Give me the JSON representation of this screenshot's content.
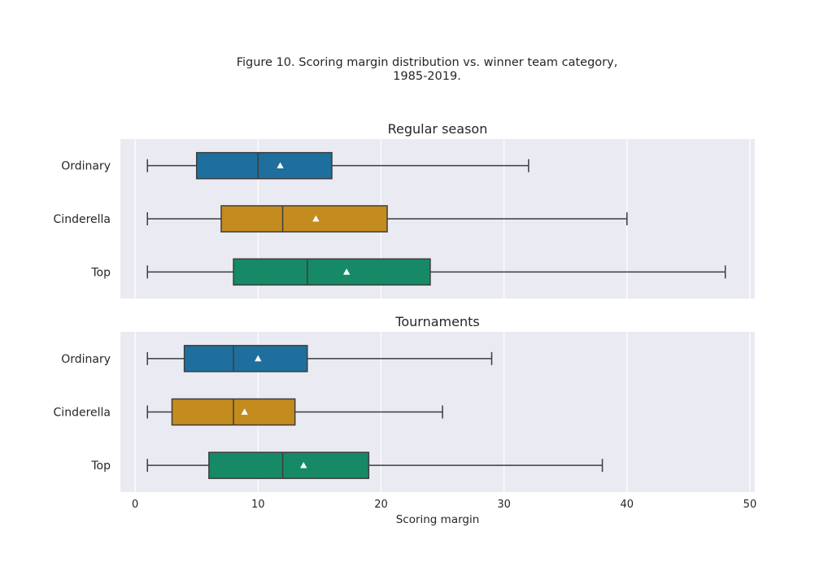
{
  "figure_title": "Figure 10. Scoring margin distribution vs. winner team category,\n1985-2019.",
  "chart_data": [
    {
      "type": "box",
      "title": "Regular season",
      "orientation": "horizontal",
      "categories": [
        "Ordinary",
        "Cinderella",
        "Top"
      ],
      "colors": [
        "#1f6f9e",
        "#c48b1e",
        "#168a66"
      ],
      "boxes": [
        {
          "category": "Ordinary",
          "whisker_low": 1,
          "q1": 5,
          "median": 10,
          "q3": 16,
          "whisker_high": 32,
          "mean": 11.8
        },
        {
          "category": "Cinderella",
          "whisker_low": 1,
          "q1": 7,
          "median": 12,
          "q3": 20.5,
          "whisker_high": 40,
          "mean": 14.7
        },
        {
          "category": "Top",
          "whisker_low": 1,
          "q1": 8,
          "median": 14,
          "q3": 24,
          "whisker_high": 48,
          "mean": 17.2
        }
      ],
      "xlim": [
        -1.2,
        50.4
      ],
      "xticks": [
        0,
        10,
        20,
        30,
        40,
        50
      ],
      "grid": true
    },
    {
      "type": "box",
      "title": "Tournaments",
      "orientation": "horizontal",
      "categories": [
        "Ordinary",
        "Cinderella",
        "Top"
      ],
      "colors": [
        "#1f6f9e",
        "#c48b1e",
        "#168a66"
      ],
      "boxes": [
        {
          "category": "Ordinary",
          "whisker_low": 1,
          "q1": 4,
          "median": 8,
          "q3": 14,
          "whisker_high": 29,
          "mean": 10.0
        },
        {
          "category": "Cinderella",
          "whisker_low": 1,
          "q1": 3,
          "median": 8,
          "q3": 13,
          "whisker_high": 25,
          "mean": 8.9
        },
        {
          "category": "Top",
          "whisker_low": 1,
          "q1": 6,
          "median": 12,
          "q3": 19,
          "whisker_high": 38,
          "mean": 13.7
        }
      ],
      "xlim": [
        -1.2,
        50.4
      ],
      "xticks": [
        0,
        10,
        20,
        30,
        40,
        50
      ],
      "xlabel": "Scoring margin",
      "grid": true
    }
  ]
}
